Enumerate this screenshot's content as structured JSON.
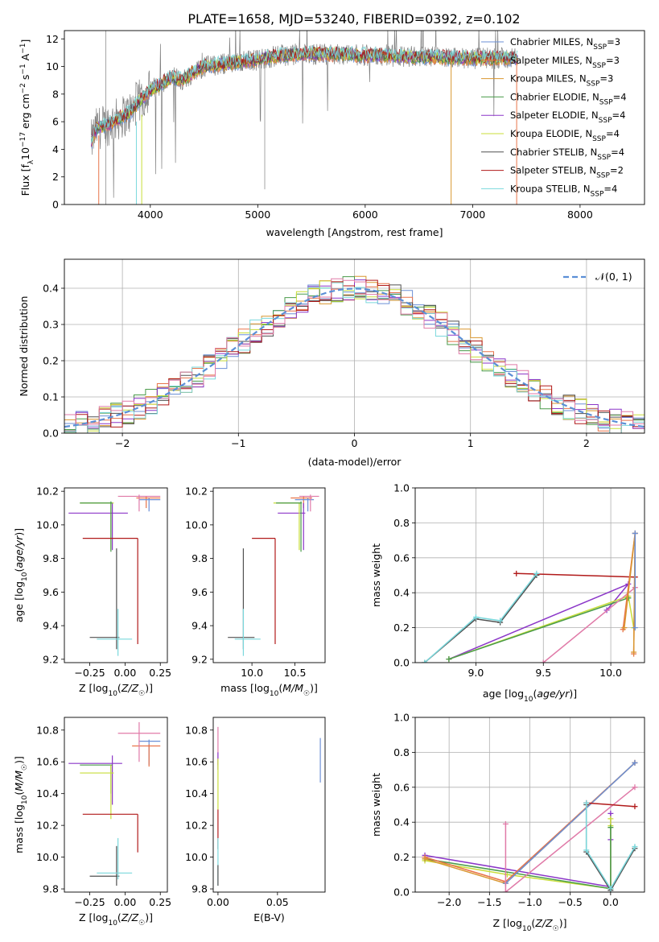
{
  "title": "PLATE=1658, MJD=53240, FIBERID=0392, z=0.102",
  "colors": {
    "chabrier_miles": "#6b8fd6",
    "salpeter_miles": "#e8744a",
    "kroupa_miles": "#d9962f",
    "chabrier_elodie": "#4a9b4a",
    "salpeter_elodie": "#8b36c8",
    "kroupa_elodie": "#c8de3a",
    "chabrier_stelib": "#505050",
    "salpeter_stelib": "#b11a1a",
    "kroupa_stelib": "#7ad8dc",
    "pink": "#e07aa8",
    "normal_fit": "#5b8fd6",
    "grid": "#b0b0b0"
  },
  "chart_data": [
    {
      "id": "spectrum",
      "type": "line",
      "xlabel": "wavelength [Angstrom, rest frame]",
      "ylabel": "Flux [f",
      "xlim": [
        3200,
        8600
      ],
      "ylim": [
        0,
        12.6
      ],
      "xticks": [
        4000,
        5000,
        6000,
        7000,
        8000
      ],
      "yticks": [
        0,
        2,
        4,
        6,
        8,
        10,
        12
      ],
      "legend_position": "right",
      "legend": [
        "Chabrier MILES, N_SSP=3",
        "Salpeter MILES, N_SSP=3",
        "Kroupa MILES, N_SSP=3",
        "Chabrier ELODIE, N_SSP=4",
        "Salpeter ELODIE, N_SSP=4",
        "Kroupa ELODIE, N_SSP=4",
        "Chabrier STELIB, N_SSP=4",
        "Salpeter STELIB, N_SSP=2",
        "Kroupa STELIB, N_SSP=4"
      ],
      "model_continuum": [
        [
          3450,
          4.5
        ],
        [
          3500,
          5.5
        ],
        [
          3600,
          5.8
        ],
        [
          3700,
          6.2
        ],
        [
          3800,
          6.6
        ],
        [
          3900,
          7.5
        ],
        [
          4000,
          8.3
        ],
        [
          4100,
          8.7
        ],
        [
          4200,
          9.2
        ],
        [
          4300,
          9.0
        ],
        [
          4400,
          9.6
        ],
        [
          4500,
          10.0
        ],
        [
          4600,
          10.1
        ],
        [
          4800,
          10.3
        ],
        [
          5000,
          10.5
        ],
        [
          5200,
          10.8
        ],
        [
          5400,
          10.9
        ],
        [
          5600,
          10.9
        ],
        [
          5800,
          10.9
        ],
        [
          6000,
          10.8
        ],
        [
          6200,
          10.8
        ],
        [
          6400,
          10.7
        ],
        [
          6600,
          10.7
        ],
        [
          6800,
          10.6
        ],
        [
          7000,
          10.6
        ],
        [
          7200,
          10.6
        ],
        [
          7400,
          10.6
        ]
      ],
      "grid": false
    },
    {
      "id": "residuals",
      "type": "step",
      "xlabel": "(data-model)/error",
      "ylabel": "Normed distribution",
      "xlim": [
        -2.5,
        2.5
      ],
      "ylim": [
        0,
        0.48
      ],
      "xticks": [
        -2,
        -1,
        0,
        1,
        2
      ],
      "xtick_labels": [
        "−2",
        "−1",
        "0",
        "1",
        "2"
      ],
      "yticks": [
        0.0,
        0.1,
        0.2,
        0.3,
        0.4
      ],
      "legend": [
        "N(0,1)"
      ],
      "grid": true,
      "bin_width": 0.1
    },
    {
      "id": "age_vs_Z",
      "type": "errorbar",
      "xlabel": "Z [log10(Z/Z☉)]",
      "ylabel": "age  [log10(age/yr)]",
      "xlim": [
        -0.43,
        0.3
      ],
      "ylim": [
        9.18,
        10.22
      ],
      "xticks": [
        -0.25,
        0.0,
        0.25
      ],
      "xtick_labels": [
        "−0.25",
        "0.00",
        "0.25"
      ],
      "yticks": [
        9.2,
        9.4,
        9.6,
        9.8,
        10.0,
        10.2
      ],
      "grid": false
    },
    {
      "id": "age_vs_mass",
      "type": "errorbar",
      "xlabel": "mass [log10(M/M☉)]",
      "ylabel": "",
      "xlim": [
        9.55,
        10.85
      ],
      "ylim": [
        9.18,
        10.22
      ],
      "xticks": [
        10.0,
        10.5
      ],
      "xtick_labels": [
        "10.0",
        "10.5"
      ],
      "yticks": [
        9.2,
        9.4,
        9.6,
        9.8,
        10.0,
        10.2
      ],
      "grid": false
    },
    {
      "id": "weight_vs_age",
      "type": "line",
      "xlabel": "age  [log10(age/yr)]",
      "ylabel": "mass weight",
      "xlim": [
        8.55,
        10.25
      ],
      "ylim": [
        0,
        1
      ],
      "xticks": [
        9.0,
        9.5,
        10.0
      ],
      "xtick_labels": [
        "9.0",
        "9.5",
        "10.0"
      ],
      "yticks": [
        0.0,
        0.2,
        0.4,
        0.6,
        0.8,
        1.0
      ],
      "grid": true
    },
    {
      "id": "mass_vs_Z",
      "type": "errorbar",
      "xlabel": "Z [log10(Z/Z☉)]",
      "ylabel": "mass [log10(M/M☉)]",
      "xlim": [
        -0.43,
        0.3
      ],
      "ylim": [
        9.78,
        10.88
      ],
      "xticks": [
        -0.25,
        0.0,
        0.25
      ],
      "xtick_labels": [
        "−0.25",
        "0.00",
        "0.25"
      ],
      "yticks": [
        9.8,
        10.0,
        10.2,
        10.4,
        10.6,
        10.8
      ],
      "grid": false
    },
    {
      "id": "mass_vs_ebv",
      "type": "errorbar",
      "xlabel": "E(B-V)",
      "ylabel": "",
      "xlim": [
        -0.004,
        0.09
      ],
      "ylim": [
        9.78,
        10.88
      ],
      "xticks": [
        0.0,
        0.05
      ],
      "xtick_labels": [
        "0.00",
        "0.05"
      ],
      "yticks": [
        9.8,
        10.0,
        10.2,
        10.4,
        10.6,
        10.8
      ],
      "grid": false
    },
    {
      "id": "weight_vs_Z",
      "type": "line",
      "xlabel": "Z [log10(Z/Z☉)]",
      "ylabel": "mass weight",
      "xlim": [
        -2.42,
        0.42
      ],
      "ylim": [
        0,
        1
      ],
      "xticks": [
        -2.0,
        -1.5,
        -1.0,
        -0.5,
        0.0
      ],
      "xtick_labels": [
        "−2.0",
        "−1.5",
        "−1.0",
        "−0.5",
        "0.0"
      ],
      "yticks": [
        0.0,
        0.2,
        0.4,
        0.6,
        0.8,
        1.0
      ],
      "grid": true
    }
  ]
}
